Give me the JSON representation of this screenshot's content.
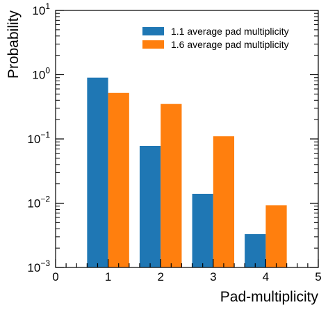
{
  "chart_data": {
    "type": "bar",
    "xlabel": "Pad-multiplicity",
    "ylabel": "Probability",
    "xlim": [
      0,
      5
    ],
    "ylim": [
      0.001,
      10
    ],
    "yscale": "log",
    "x_ticks": [
      "0",
      "1",
      "2",
      "3",
      "4",
      "5"
    ],
    "y_ticks": [
      {
        "base": "10",
        "exp": "−3"
      },
      {
        "base": "10",
        "exp": "−2"
      },
      {
        "base": "10",
        "exp": "−1"
      },
      {
        "base": "10",
        "exp": "0"
      },
      {
        "base": "10",
        "exp": "1"
      }
    ],
    "categories": [
      1,
      2,
      3,
      4
    ],
    "series": [
      {
        "name": "1.1 average pad multiplicity",
        "color": "#1f77b4",
        "values": [
          0.9,
          0.078,
          0.014,
          0.0033
        ]
      },
      {
        "name": "1.6 average pad multiplicity",
        "color": "#ff7f0e",
        "values": [
          0.52,
          0.35,
          0.11,
          0.0093
        ]
      }
    ],
    "legend_position": "top-right",
    "grid": false
  }
}
